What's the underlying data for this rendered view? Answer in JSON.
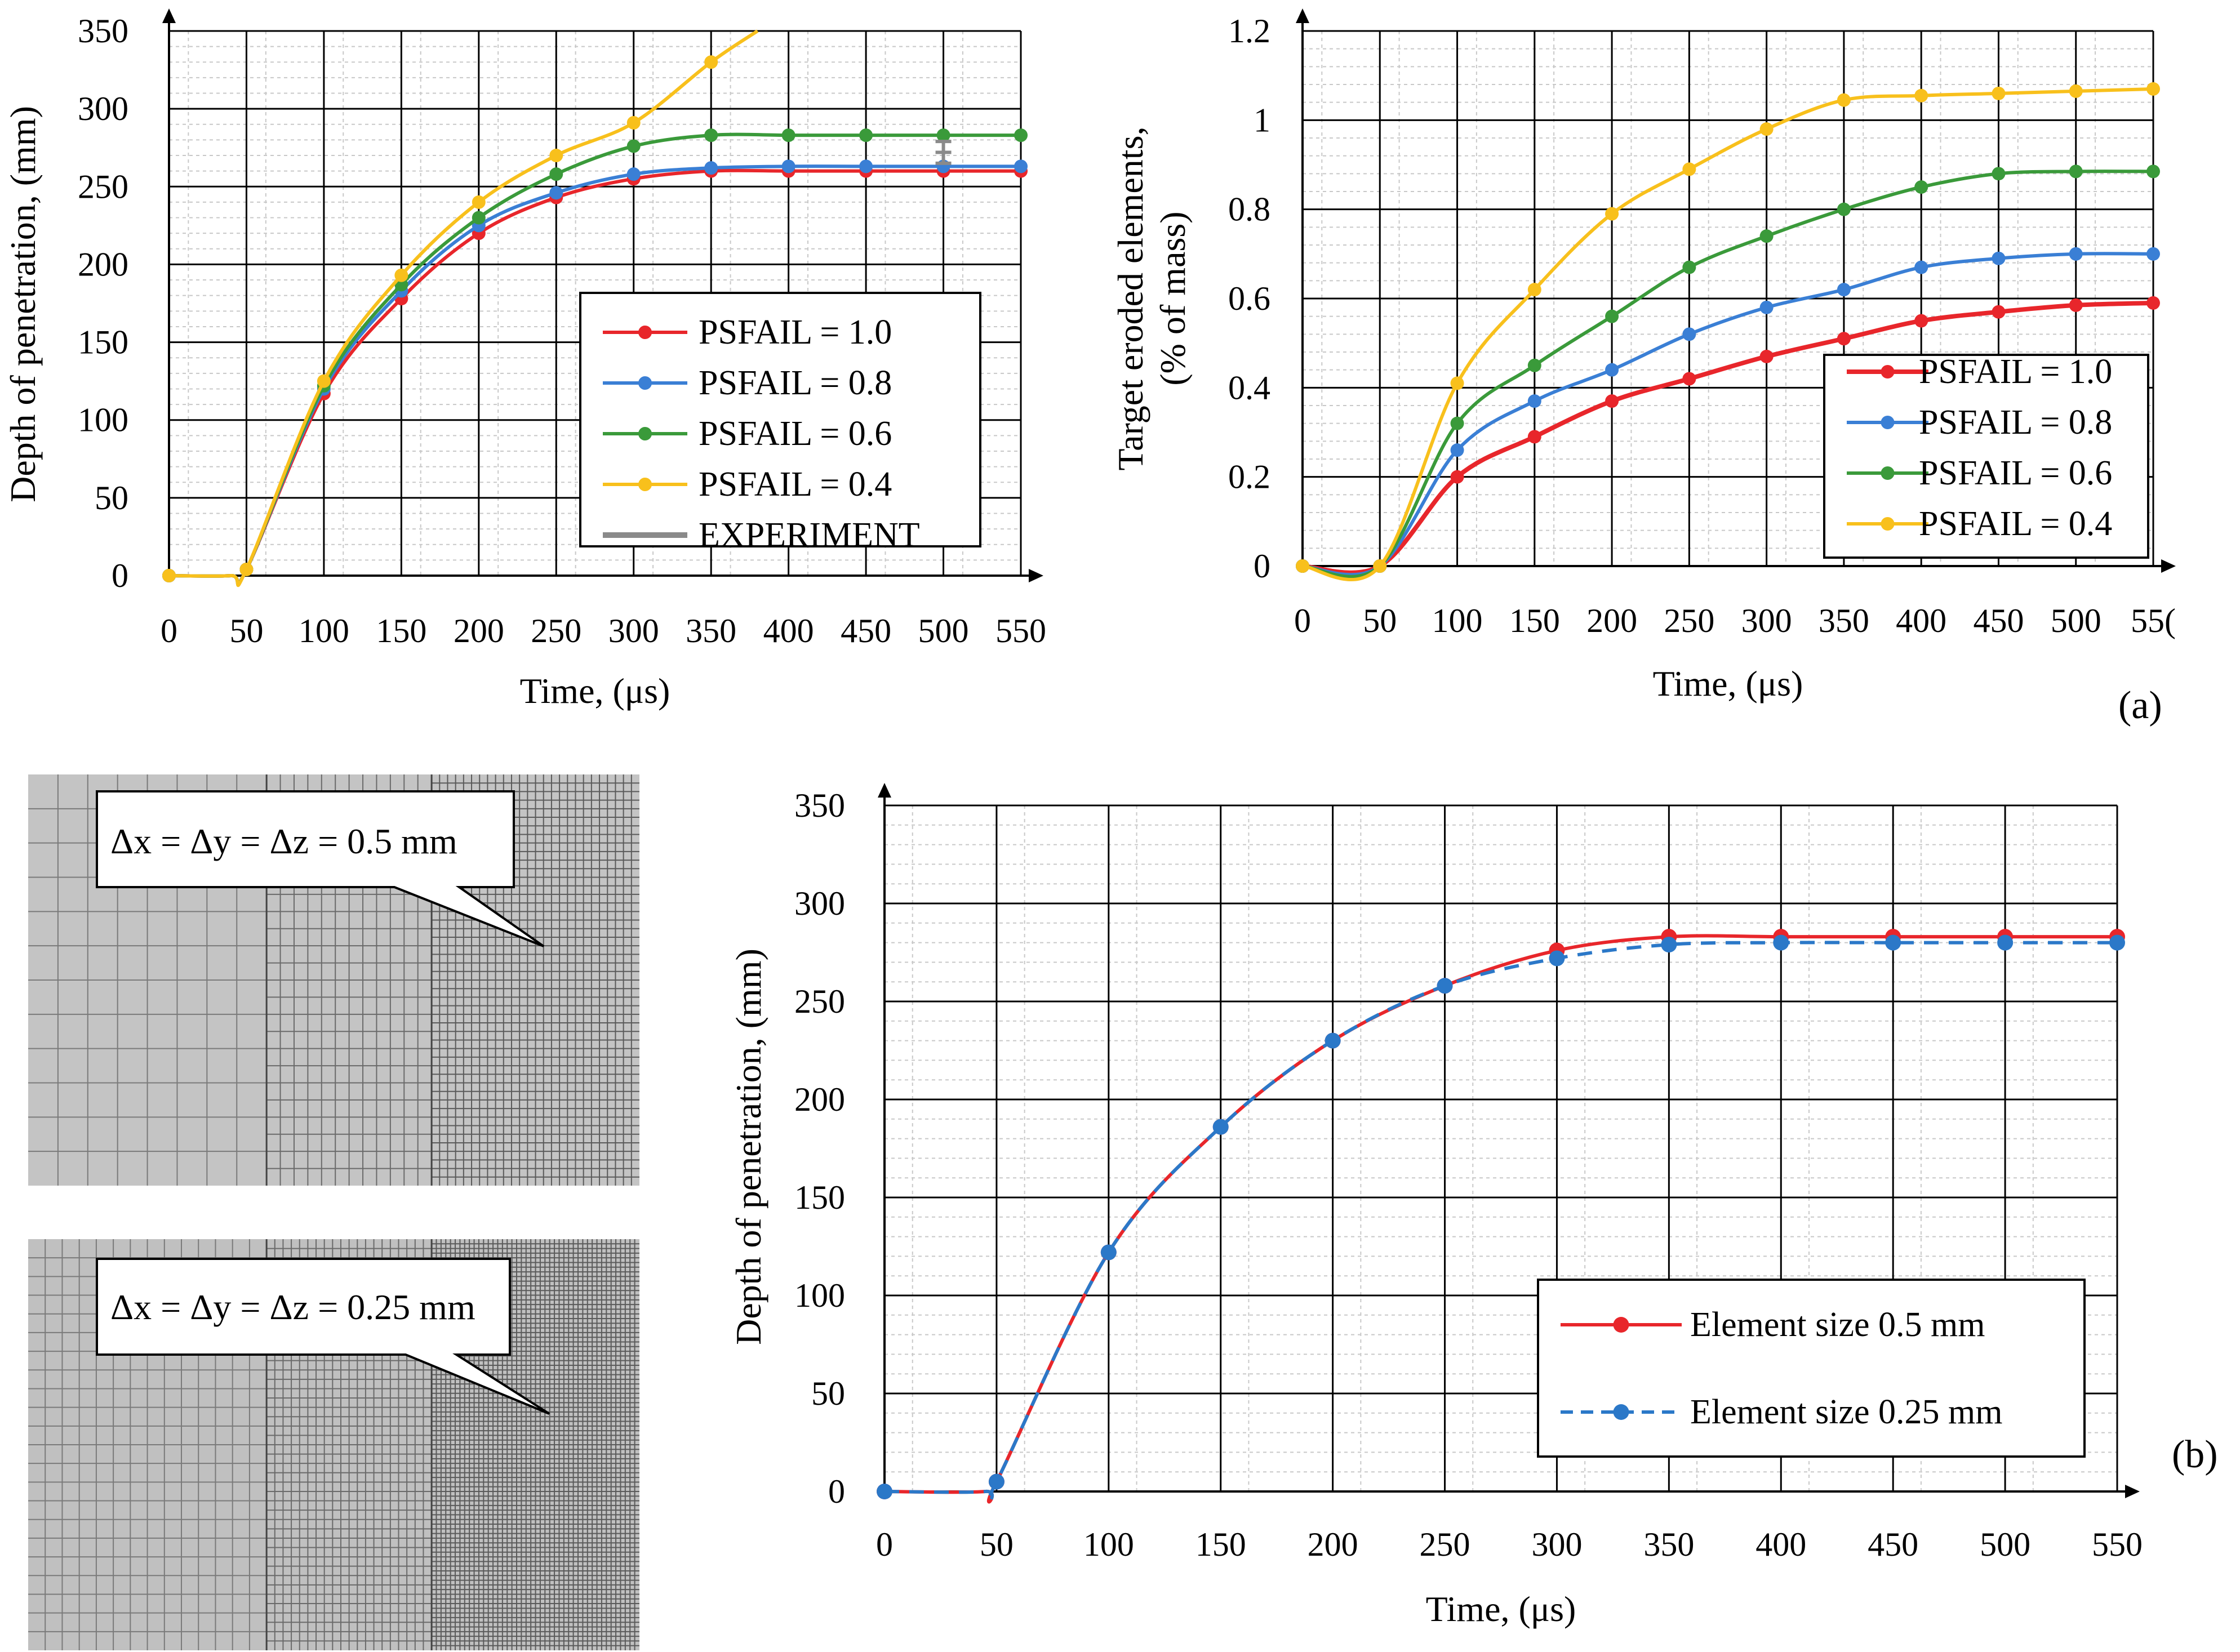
{
  "chart_data": [
    {
      "id": "c1",
      "type": "line",
      "xlabel": "Time, (μs)",
      "ylabel": "Depth of penetration, (mm)",
      "xlim": [
        0,
        550
      ],
      "ylim": [
        0,
        350
      ],
      "xticks": [
        "0",
        "50",
        "100",
        "150",
        "200",
        "250",
        "300",
        "350",
        "400",
        "450",
        "500",
        "550"
      ],
      "yticks": [
        "0",
        "50",
        "100",
        "150",
        "200",
        "250",
        "300",
        "350"
      ],
      "legend": "bottom-right",
      "series": [
        {
          "name": "PSFAIL = 1.0",
          "color": "#e8262b",
          "x": [
            0,
            40,
            50,
            100,
            150,
            200,
            250,
            300,
            350,
            400,
            450,
            500,
            550
          ],
          "y": [
            0,
            0,
            4,
            117,
            178,
            220,
            243,
            255,
            260,
            260,
            260,
            260,
            260
          ]
        },
        {
          "name": "PSFAIL = 0.8",
          "color": "#3a7fd5",
          "x": [
            0,
            40,
            50,
            100,
            150,
            200,
            250,
            300,
            350,
            400,
            450,
            500,
            550
          ],
          "y": [
            0,
            0,
            4,
            120,
            183,
            225,
            246,
            258,
            262,
            263,
            263,
            263,
            263
          ]
        },
        {
          "name": "PSFAIL = 0.6",
          "color": "#3a9a3a",
          "x": [
            0,
            40,
            50,
            100,
            150,
            200,
            250,
            300,
            350,
            400,
            450,
            500,
            550
          ],
          "y": [
            0,
            0,
            4,
            122,
            187,
            230,
            258,
            276,
            283,
            283,
            283,
            283,
            283
          ]
        },
        {
          "name": "PSFAIL = 0.4",
          "color": "#f8c01c",
          "x": [
            0,
            40,
            50,
            100,
            150,
            200,
            250,
            300,
            350,
            380
          ],
          "y": [
            0,
            0,
            4,
            125,
            193,
            240,
            270,
            291,
            330,
            350
          ]
        },
        {
          "name": "EXPERIMENT",
          "color": "#8a8a8a",
          "x": [
            500
          ],
          "y": [
            272
          ],
          "error": [
            7
          ]
        }
      ]
    },
    {
      "id": "c2",
      "type": "line",
      "xlabel": "Time, (μs)",
      "ylabel": "Target eroded elements,",
      "ylabel2": "(% of mass)",
      "xlim": [
        0,
        550
      ],
      "ylim": [
        0,
        1.2
      ],
      "xticks": [
        "0",
        "50",
        "100",
        "150",
        "200",
        "250",
        "300",
        "350",
        "400",
        "450",
        "500",
        "55("
      ],
      "yticks": [
        "0",
        "0.2",
        "0.4",
        "0.6",
        "0.8",
        "1",
        "1.2"
      ],
      "legend": "bottom-right",
      "series": [
        {
          "name": "PSFAIL = 1.0",
          "color": "#e8262b",
          "x": [
            0,
            50,
            100,
            150,
            200,
            250,
            300,
            350,
            400,
            450,
            500,
            550
          ],
          "y": [
            0,
            0,
            0.2,
            0.29,
            0.37,
            0.42,
            0.47,
            0.51,
            0.55,
            0.57,
            0.585,
            0.59
          ]
        },
        {
          "name": "PSFAIL = 0.8",
          "color": "#3a7fd5",
          "x": [
            0,
            50,
            100,
            150,
            200,
            250,
            300,
            350,
            400,
            450,
            500,
            550
          ],
          "y": [
            0,
            0,
            0.26,
            0.37,
            0.44,
            0.52,
            0.58,
            0.62,
            0.67,
            0.69,
            0.7,
            0.7
          ]
        },
        {
          "name": "PSFAIL = 0.6",
          "color": "#3a9a3a",
          "x": [
            0,
            50,
            100,
            150,
            200,
            250,
            300,
            350,
            400,
            450,
            500,
            550
          ],
          "y": [
            0,
            0,
            0.32,
            0.45,
            0.56,
            0.67,
            0.74,
            0.8,
            0.85,
            0.88,
            0.885,
            0.885
          ]
        },
        {
          "name": "PSFAIL = 0.4",
          "color": "#f8c01c",
          "x": [
            0,
            50,
            100,
            150,
            200,
            250,
            300,
            350,
            400,
            450,
            500,
            550
          ],
          "y": [
            0,
            0,
            0.41,
            0.62,
            0.79,
            0.89,
            0.98,
            1.045,
            1.055,
            1.06,
            1.065,
            1.07
          ]
        }
      ]
    },
    {
      "id": "c3",
      "type": "line",
      "xlabel": "Time, (μs)",
      "ylabel": "Depth of penetration, (mm)",
      "xlim": [
        0,
        550
      ],
      "ylim": [
        0,
        350
      ],
      "xticks": [
        "0",
        "50",
        "100",
        "150",
        "200",
        "250",
        "300",
        "350",
        "400",
        "450",
        "500",
        "550"
      ],
      "yticks": [
        "0",
        "50",
        "100",
        "150",
        "200",
        "250",
        "300",
        "350"
      ],
      "legend": "bottom-right",
      "series": [
        {
          "name": "Element size 0.5 mm",
          "color": "#e8262b",
          "dash": false,
          "x": [
            0,
            45,
            50,
            100,
            150,
            200,
            250,
            300,
            350,
            400,
            450,
            500,
            550
          ],
          "y": [
            0,
            0,
            5,
            122,
            186,
            230,
            258,
            276,
            283,
            283,
            283,
            283,
            283
          ]
        },
        {
          "name": "Element size 0.25 mm",
          "color": "#2b78c8",
          "dash": true,
          "x": [
            0,
            45,
            50,
            100,
            150,
            200,
            250,
            300,
            350,
            400,
            450,
            500,
            550
          ],
          "y": [
            0,
            0,
            5,
            122,
            186,
            230,
            258,
            272,
            279,
            280,
            280,
            280,
            280
          ]
        }
      ]
    }
  ],
  "panels": {
    "a_label": "(a)",
    "b_label": "(b)"
  },
  "mesh": {
    "top_caption": "Δx = Δy = Δz = 0.5 mm",
    "bottom_caption": "Δx = Δy = Δz = 0.25 mm"
  }
}
